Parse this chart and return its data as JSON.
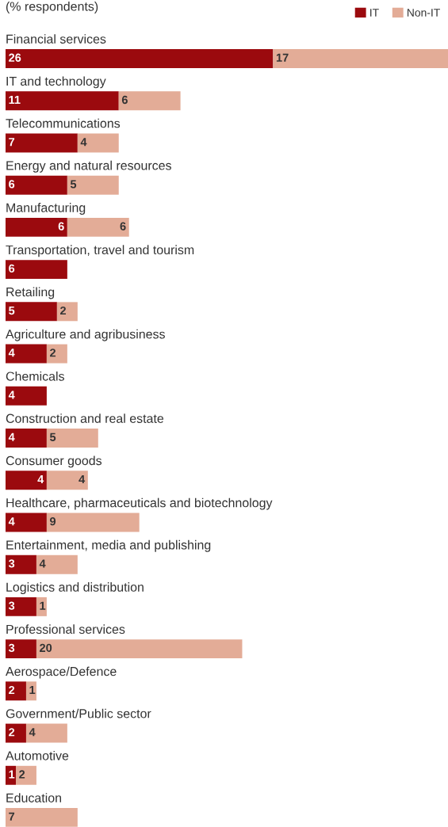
{
  "chart_data": {
    "type": "bar",
    "orientation": "horizontal",
    "stacked": true,
    "title": "(% respondents)",
    "categories": [
      "Financial services",
      "IT and technology",
      "Telecommunications",
      "Energy and natural resources",
      "Manufacturing",
      "Transportation, travel and tourism",
      "Retailing",
      "Agriculture and agribusiness",
      "Chemicals",
      "Construction and real estate",
      "Consumer goods",
      "Healthcare, pharmaceuticals and biotechnology",
      "Entertainment, media and publishing",
      "Logistics and distribution",
      "Professional services",
      "Aerospace/Defence",
      "Government/Public sector",
      "Automotive",
      "Education"
    ],
    "series": [
      {
        "name": "IT",
        "color": "#9b0a0e",
        "values": [
          26,
          11,
          7,
          6,
          6,
          6,
          5,
          4,
          4,
          4,
          4,
          4,
          3,
          3,
          3,
          2,
          2,
          1,
          null
        ]
      },
      {
        "name": "Non-IT",
        "color": "#e3ac97",
        "values": [
          17,
          6,
          4,
          5,
          6,
          null,
          2,
          2,
          null,
          5,
          4,
          9,
          4,
          1,
          20,
          1,
          4,
          2,
          7
        ]
      }
    ],
    "data_labels": true,
    "legend": "top right",
    "tick_labels": "y"
  }
}
